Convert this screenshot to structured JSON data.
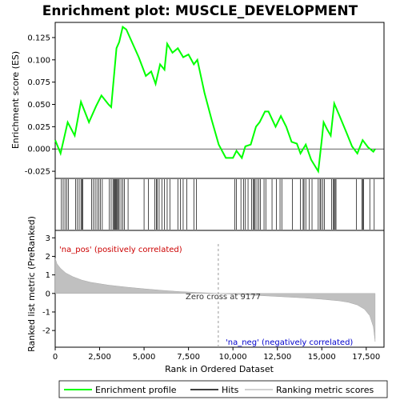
{
  "chart_data": {
    "type": "line",
    "title": "Enrichment plot: MUSCLE_DEVELOPMENT",
    "top_panel": {
      "ylabel": "Enrichment score (ES)",
      "ylim": [
        -0.033,
        0.142
      ],
      "yticks": [
        "-0.025",
        "0.000",
        "0.025",
        "0.050",
        "0.075",
        "0.100",
        "0.125"
      ],
      "ytick_values": [
        -0.025,
        0.0,
        0.025,
        0.05,
        0.075,
        0.1,
        0.125
      ],
      "series": [
        {
          "name": "Enrichment profile",
          "color": "#00ff00",
          "points": [
            [
              0,
              0.01
            ],
            [
              300,
              -0.005
            ],
            [
              700,
              0.03
            ],
            [
              1100,
              0.015
            ],
            [
              1450,
              0.053
            ],
            [
              1900,
              0.03
            ],
            [
              2300,
              0.048
            ],
            [
              2600,
              0.06
            ],
            [
              3000,
              0.05
            ],
            [
              3150,
              0.047
            ],
            [
              3450,
              0.113
            ],
            [
              3600,
              0.12
            ],
            [
              3800,
              0.137
            ],
            [
              4000,
              0.134
            ],
            [
              4700,
              0.103
            ],
            [
              5100,
              0.082
            ],
            [
              5400,
              0.087
            ],
            [
              5650,
              0.073
            ],
            [
              5900,
              0.095
            ],
            [
              6150,
              0.089
            ],
            [
              6300,
              0.118
            ],
            [
              6600,
              0.108
            ],
            [
              6900,
              0.113
            ],
            [
              7200,
              0.103
            ],
            [
              7500,
              0.106
            ],
            [
              7800,
              0.095
            ],
            [
              8000,
              0.1
            ],
            [
              8400,
              0.063
            ],
            [
              8800,
              0.033
            ],
            [
              9200,
              0.005
            ],
            [
              9600,
              -0.01
            ],
            [
              10000,
              -0.01
            ],
            [
              10200,
              -0.002
            ],
            [
              10500,
              -0.01
            ],
            [
              10700,
              0.003
            ],
            [
              11000,
              0.005
            ],
            [
              11300,
              0.025
            ],
            [
              11500,
              0.03
            ],
            [
              11800,
              0.042
            ],
            [
              12000,
              0.042
            ],
            [
              12400,
              0.025
            ],
            [
              12700,
              0.037
            ],
            [
              13000,
              0.025
            ],
            [
              13300,
              0.008
            ],
            [
              13600,
              0.006
            ],
            [
              13800,
              -0.005
            ],
            [
              14100,
              0.005
            ],
            [
              14400,
              -0.012
            ],
            [
              14800,
              -0.025
            ],
            [
              15000,
              0.01
            ],
            [
              15100,
              0.03
            ],
            [
              15300,
              0.022
            ],
            [
              15500,
              0.015
            ],
            [
              15700,
              0.051
            ],
            [
              16000,
              0.037
            ],
            [
              16400,
              0.018
            ],
            [
              16700,
              0.003
            ],
            [
              17000,
              -0.005
            ],
            [
              17300,
              0.01
            ],
            [
              17600,
              0.002
            ],
            [
              17900,
              -0.003
            ],
            [
              18000,
              0.0
            ]
          ]
        }
      ]
    },
    "hits_panel": {
      "hit_ranks": [
        350,
        450,
        550,
        650,
        750,
        1150,
        1250,
        1350,
        1450,
        1500,
        1550,
        2050,
        2150,
        2250,
        2350,
        2450,
        2550,
        2650,
        3050,
        3150,
        3250,
        3300,
        3350,
        3400,
        3450,
        3500,
        3550,
        3600,
        3700,
        3800,
        3900,
        4100,
        5000,
        5250,
        5600,
        5700,
        5750,
        5850,
        6000,
        6150,
        6300,
        6450,
        6900,
        7050,
        7200,
        7400,
        7800,
        7950,
        10100,
        10200,
        10450,
        10600,
        10700,
        10850,
        11050,
        11150,
        11200,
        11250,
        11350,
        11450,
        11550,
        11750,
        11850,
        12200,
        12450,
        12650,
        12750,
        13350,
        13800,
        13950,
        14000,
        14100,
        14300,
        14450,
        14800,
        14900,
        14950,
        15050,
        15150,
        15550,
        15650,
        15700,
        15750,
        15800,
        16950,
        17250,
        17300,
        17350,
        17700,
        17950
      ]
    },
    "metric_panel": {
      "ylabel": "Ranked list metric (PreRanked)",
      "ylim": [
        -2.9,
        3.4
      ],
      "yticks": [
        "-2",
        "-1",
        "0",
        "1",
        "2",
        "3"
      ],
      "ytick_values": [
        -2,
        -1,
        0,
        1,
        2,
        3
      ],
      "points": [
        [
          0,
          1.9
        ],
        [
          100,
          1.6
        ],
        [
          300,
          1.35
        ],
        [
          600,
          1.1
        ],
        [
          1000,
          0.9
        ],
        [
          1500,
          0.72
        ],
        [
          2000,
          0.6
        ],
        [
          3000,
          0.45
        ],
        [
          4000,
          0.34
        ],
        [
          5000,
          0.25
        ],
        [
          6000,
          0.17
        ],
        [
          7000,
          0.1
        ],
        [
          8000,
          0.05
        ],
        [
          9177,
          0.0
        ],
        [
          10000,
          -0.04
        ],
        [
          11000,
          -0.09
        ],
        [
          12000,
          -0.14
        ],
        [
          13000,
          -0.19
        ],
        [
          14000,
          -0.24
        ],
        [
          15000,
          -0.31
        ],
        [
          16000,
          -0.4
        ],
        [
          16500,
          -0.48
        ],
        [
          17000,
          -0.62
        ],
        [
          17400,
          -0.85
        ],
        [
          17700,
          -1.2
        ],
        [
          17900,
          -1.8
        ],
        [
          18000,
          -2.6
        ]
      ],
      "labels": {
        "pos": "'na_pos' (positively correlated)",
        "neg": "'na_neg' (negatively correlated)",
        "zero_cross": "Zero cross at 9177"
      }
    },
    "xlabel": "Rank in Ordered Dataset",
    "xlim": [
      0,
      18500
    ],
    "xticks": [
      "0",
      "2,500",
      "5,000",
      "7,500",
      "10,000",
      "12,500",
      "15,000",
      "17,500"
    ],
    "xtick_values": [
      0,
      2500,
      5000,
      7500,
      10000,
      12500,
      15000,
      17500
    ],
    "zero_cross_rank": 9177,
    "legend": {
      "placement": "bottom",
      "items": [
        "Enrichment profile",
        "Hits",
        "Ranking metric scores"
      ]
    },
    "colors": {
      "profile": "#00ff00",
      "hits": "#000000",
      "metric": "#c0c0c0",
      "pos_label": "#cc0000",
      "neg_label": "#0000cc",
      "zero_label": "#333333"
    }
  }
}
